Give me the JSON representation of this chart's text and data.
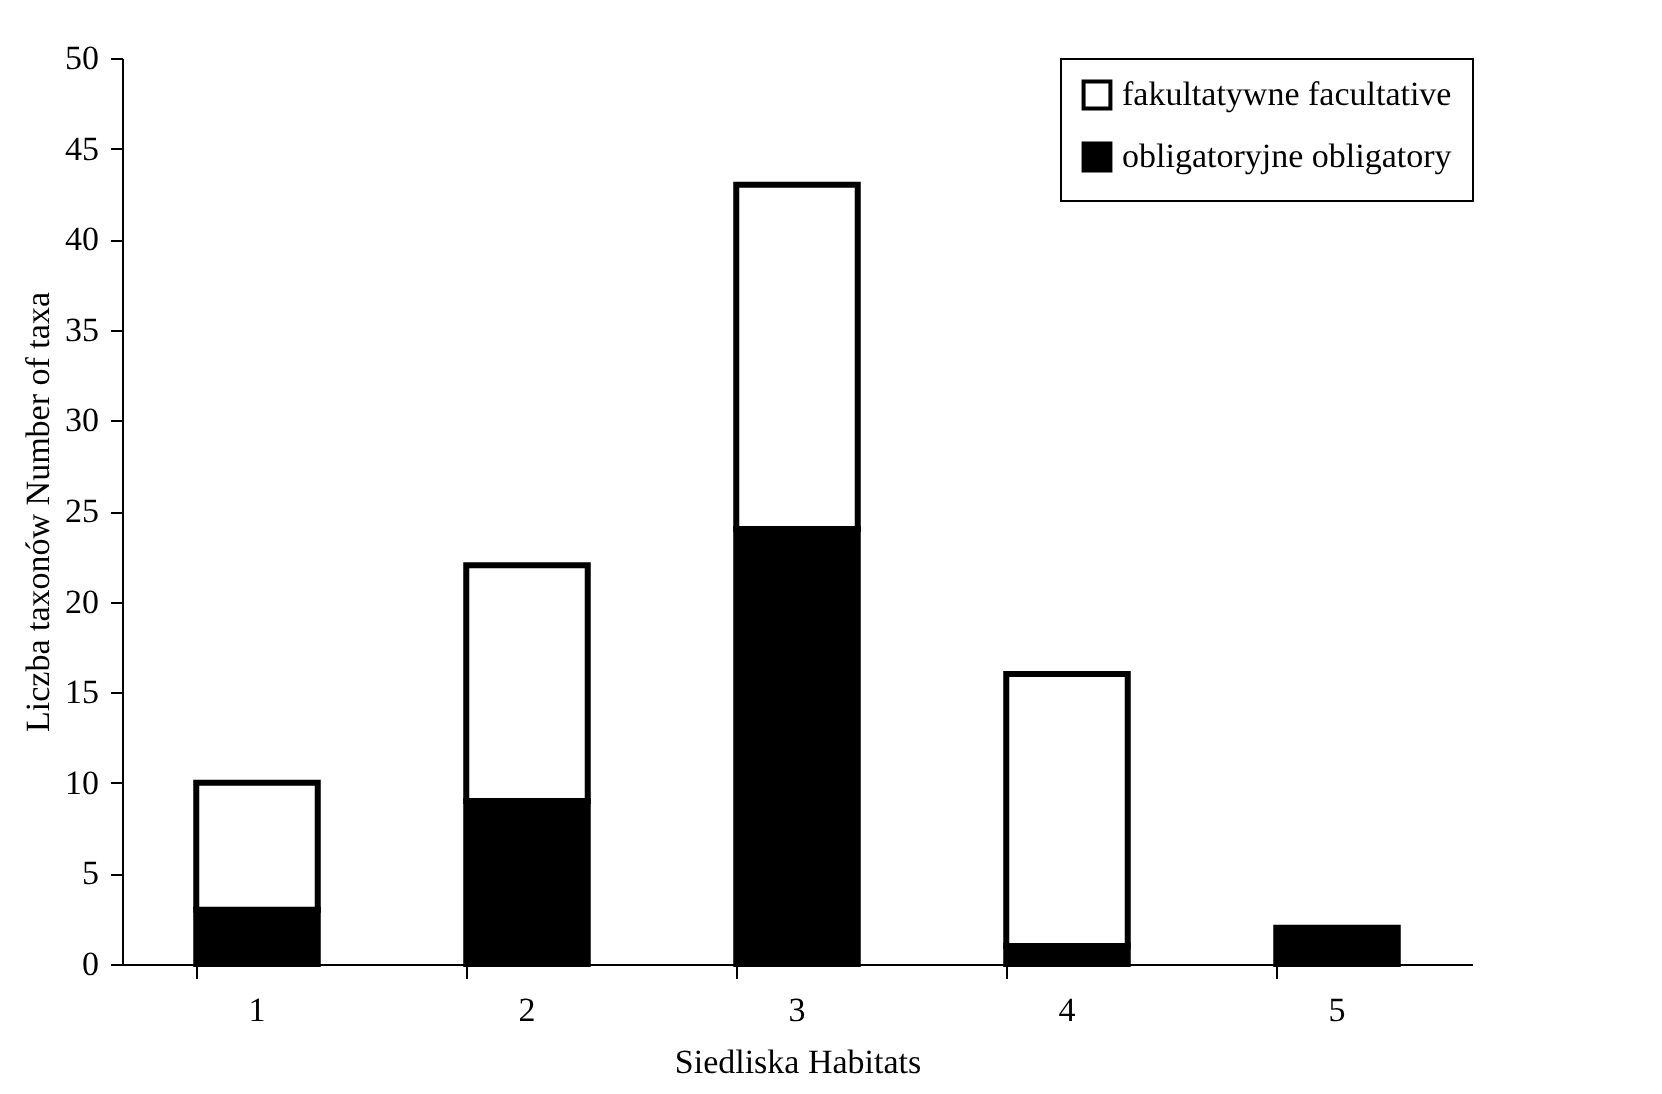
{
  "chart_data": {
    "type": "bar",
    "stacked": true,
    "xlabel": "Siedliska Habitats",
    "ylabel": "Liczba taxonów Number of taxa",
    "categories": [
      "1",
      "2",
      "3",
      "4",
      "5"
    ],
    "series": [
      {
        "name": "obligatoryjne obligatory",
        "color": "#000000",
        "values": [
          3,
          9,
          24,
          1,
          2
        ]
      },
      {
        "name": "fakultatywne facultative",
        "color": "#ffffff",
        "values": [
          7,
          13,
          19,
          15,
          0
        ]
      }
    ],
    "ylim": [
      0,
      50
    ],
    "yticks": [
      0,
      5,
      10,
      15,
      20,
      25,
      30,
      35,
      40,
      45,
      50
    ],
    "legend": "top right"
  }
}
